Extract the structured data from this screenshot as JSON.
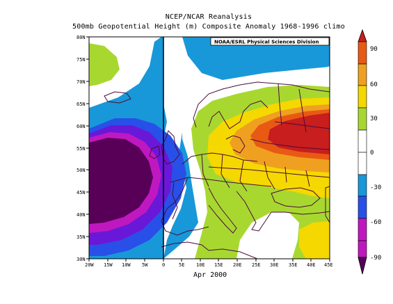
{
  "titles": {
    "line1": "NCEP/NCAR Reanalysis",
    "line2": "500mb Geopotential Height (m) Composite Anomaly 1968-1996 climo",
    "credit": "NOAA/ESRL Physical Sciences Division",
    "date": "Apr 2000"
  },
  "axes": {
    "lat_labels": [
      "80N",
      "75N",
      "70N",
      "65N",
      "60N",
      "55N",
      "50N",
      "45N",
      "40N",
      "35N",
      "30N"
    ],
    "lon_labels": [
      "20W",
      "15W",
      "10W",
      "5W",
      "0",
      "5E",
      "10E",
      "15E",
      "20E",
      "25E",
      "30E",
      "35E",
      "40E",
      "45E"
    ],
    "lat_range": [
      30,
      80
    ],
    "lon_range": [
      -20,
      45
    ]
  },
  "colorbar": {
    "labels": [
      "90",
      "60",
      "30",
      "0",
      "-30",
      "-60",
      "-90"
    ],
    "colors": [
      "#c81e1e",
      "#e85a14",
      "#f0a020",
      "#f5d800",
      "#a8d830",
      "#ffffff",
      "#1898d8",
      "#2850e8",
      "#6a18d8",
      "#c018c0",
      "#580058"
    ]
  },
  "colors": {
    "white": "#ffffff",
    "lightblue": "#1898d8",
    "blue": "#2850e8",
    "violet": "#6a18d8",
    "magenta": "#c018c0",
    "darkpurple": "#580058",
    "green": "#a8d830",
    "yellow": "#f5d800",
    "orange": "#f0a020",
    "darkorange": "#e85a14",
    "red": "#c81e1e",
    "coast": "#4a0a3a"
  }
}
